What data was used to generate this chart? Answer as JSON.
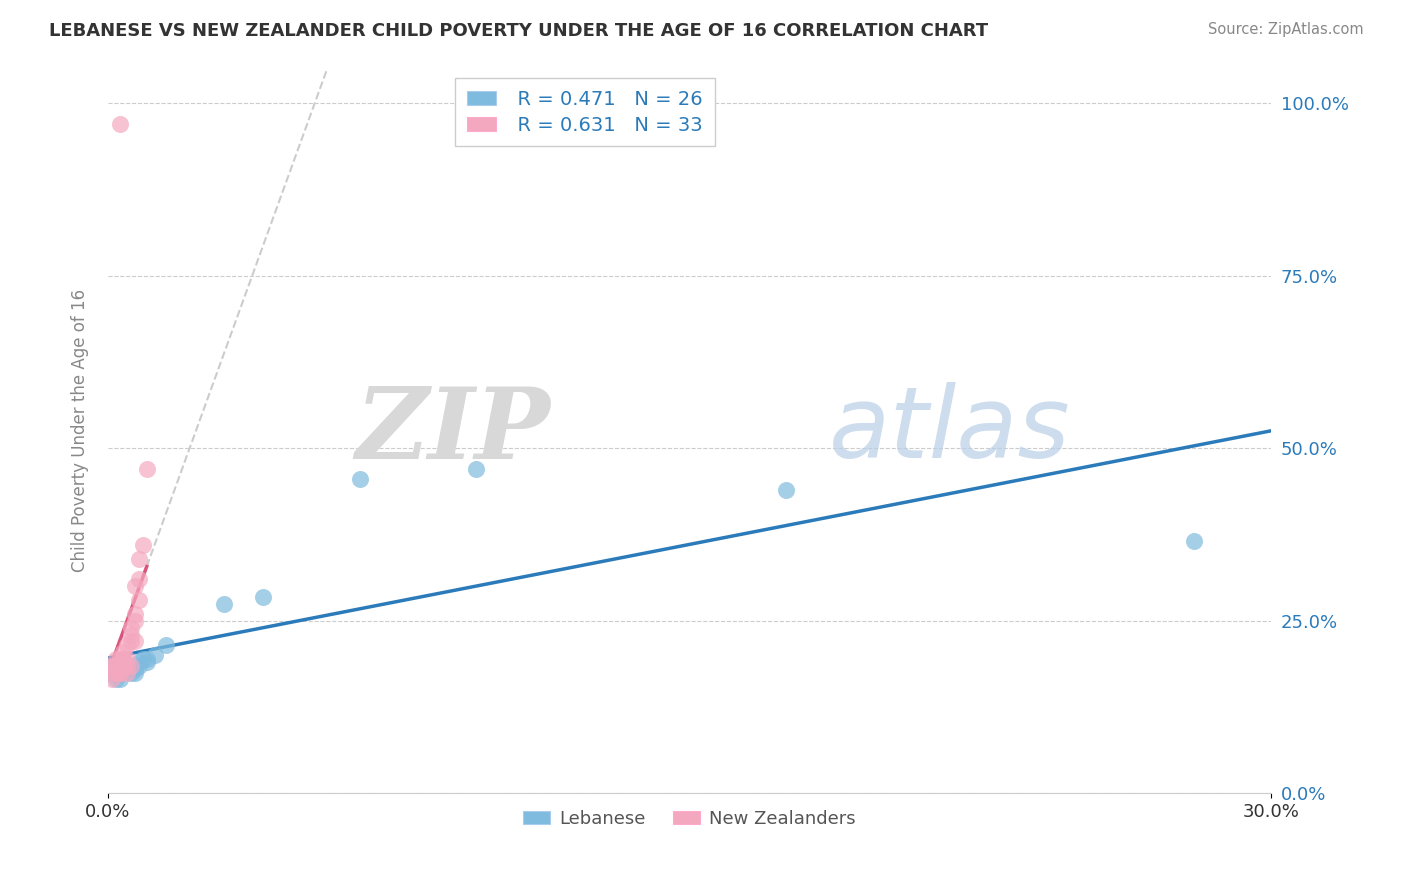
{
  "title": "LEBANESE VS NEW ZEALANDER CHILD POVERTY UNDER THE AGE OF 16 CORRELATION CHART",
  "source": "Source: ZipAtlas.com",
  "ylabel": "Child Poverty Under the Age of 16",
  "xlim": [
    0.0,
    0.3
  ],
  "ylim": [
    0.0,
    1.05
  ],
  "ytick_vals": [
    0.0,
    0.25,
    0.5,
    0.75,
    1.0
  ],
  "ytick_labels": [
    "0.0%",
    "25.0%",
    "50.0%",
    "75.0%",
    "100.0%"
  ],
  "xtick_vals": [
    0.0,
    0.3
  ],
  "xtick_labels": [
    "0.0%",
    "30.0%"
  ],
  "legend_labels": [
    "Lebanese",
    "New Zealanders"
  ],
  "legend_r0": "R = 0.471",
  "legend_r1": "R = 0.631",
  "legend_n0": "N = 26",
  "legend_n1": "N = 33",
  "blue_scatter": "#7fbbde",
  "pink_scatter": "#f4a8bf",
  "blue_line": "#2b7bba",
  "pink_line": "#d9547a",
  "watermark_zip": "ZIP",
  "watermark_atlas": "atlas",
  "lebanese_x": [
    0.001,
    0.001,
    0.002,
    0.002,
    0.003,
    0.003,
    0.004,
    0.005,
    0.005,
    0.006,
    0.006,
    0.007,
    0.007,
    0.008,
    0.008,
    0.009,
    0.01,
    0.01,
    0.012,
    0.015,
    0.03,
    0.04,
    0.065,
    0.095,
    0.175,
    0.28
  ],
  "lebanese_y": [
    0.185,
    0.175,
    0.175,
    0.165,
    0.185,
    0.165,
    0.195,
    0.18,
    0.185,
    0.175,
    0.185,
    0.175,
    0.18,
    0.185,
    0.19,
    0.195,
    0.19,
    0.195,
    0.2,
    0.215,
    0.275,
    0.285,
    0.455,
    0.47,
    0.44,
    0.365
  ],
  "nz_x": [
    0.001,
    0.001,
    0.001,
    0.002,
    0.002,
    0.002,
    0.002,
    0.003,
    0.003,
    0.003,
    0.003,
    0.004,
    0.004,
    0.004,
    0.004,
    0.005,
    0.005,
    0.005,
    0.005,
    0.006,
    0.006,
    0.006,
    0.006,
    0.007,
    0.007,
    0.007,
    0.007,
    0.008,
    0.008,
    0.008,
    0.009,
    0.01,
    0.003
  ],
  "nz_y": [
    0.185,
    0.175,
    0.165,
    0.175,
    0.185,
    0.195,
    0.185,
    0.175,
    0.185,
    0.195,
    0.175,
    0.185,
    0.195,
    0.205,
    0.185,
    0.175,
    0.185,
    0.195,
    0.215,
    0.185,
    0.22,
    0.23,
    0.24,
    0.22,
    0.25,
    0.26,
    0.3,
    0.28,
    0.31,
    0.34,
    0.36,
    0.47,
    0.97
  ]
}
